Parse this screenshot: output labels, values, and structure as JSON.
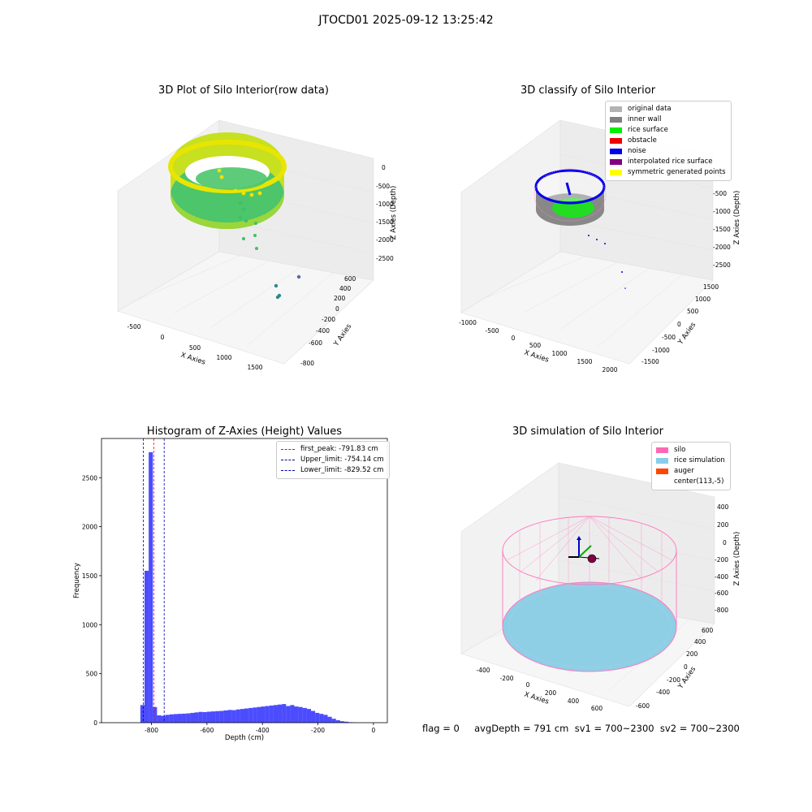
{
  "figure": {
    "title": "JTOCD01 2025-09-12 13:25:42",
    "status_text": "flag = 0     avgDepth = 791 cm  sv1 = 700~2300  sv2 = 700~2300"
  },
  "panels": {
    "raw": {
      "title": "3D Plot of Silo Interior(row data)",
      "xlabel": "X Axies",
      "ylabel": "Y Axies",
      "zlabel": "Z Axies (Depth)",
      "xticks": [
        "-500",
        "0",
        "500",
        "1000",
        "1500"
      ],
      "yticks": [
        "-800",
        "-600",
        "-400",
        "-200",
        "0",
        "200",
        "400",
        "600"
      ],
      "zticks": [
        "0",
        "-500",
        "-1000",
        "-1500",
        "-2000",
        "-2500"
      ]
    },
    "classify": {
      "title": "3D classify of Silo Interior",
      "xlabel": "X Axies",
      "ylabel": "Y Axies",
      "zlabel": "Z Axies (Depth)",
      "xticks": [
        "-1000",
        "-500",
        "0",
        "500",
        "1000",
        "1500",
        "2000"
      ],
      "yticks": [
        "-1500",
        "-1000",
        "-500",
        "0",
        "500",
        "1000",
        "1500"
      ],
      "zticks": [
        "0",
        "-500",
        "-1000",
        "-1500",
        "-2000",
        "-2500"
      ],
      "legend": [
        {
          "label": "original data",
          "color": "#b3b3b3"
        },
        {
          "label": "inner wall",
          "color": "#808080"
        },
        {
          "label": "rice surface",
          "color": "#00ee00"
        },
        {
          "label": "obstacle",
          "color": "#ee0000"
        },
        {
          "label": "noise",
          "color": "#0000ee"
        },
        {
          "label": "interpolated rice surface",
          "color": "#800080"
        },
        {
          "label": "symmetric generated points",
          "color": "#ffff00"
        }
      ]
    },
    "histogram": {
      "title": "Histogram of Z-Axies (Height) Values",
      "xlabel": "Depth (cm)",
      "ylabel": "Frequency",
      "legend": [
        {
          "label": "first_peak: -791.83 cm",
          "color": "#ff0000"
        },
        {
          "label": "Upper_limit: -754.14 cm",
          "color": "#0000aa"
        },
        {
          "label": "Lower_limit: -829.52 cm",
          "color": "#0000aa"
        }
      ]
    },
    "simulation": {
      "title": "3D simulation of Silo Interior",
      "xlabel": "X Axies",
      "ylabel": "Y Axies",
      "zlabel": "Z Axies (Depth)",
      "xticks": [
        "-400",
        "-200",
        "0",
        "200",
        "400",
        "600"
      ],
      "yticks": [
        "-600",
        "-400",
        "-200",
        "0",
        "200",
        "400",
        "600"
      ],
      "zticks": [
        "400",
        "200",
        "0",
        "-200",
        "-400",
        "-600",
        "-800"
      ],
      "legend": [
        {
          "label": "silo",
          "color": "#ff69b4"
        },
        {
          "label": "rice simulation",
          "color": "#87ceeb"
        },
        {
          "label": "auger",
          "color": "#ff4500"
        },
        {
          "label": "center(113,-5)",
          "color": ""
        }
      ]
    }
  },
  "chart_data": {
    "type": "bar",
    "title": "Histogram of Z-Axies (Height) Values",
    "xlabel": "Depth (cm)",
    "ylabel": "Frequency",
    "xlim": [
      -980,
      50
    ],
    "ylim": [
      0,
      2900
    ],
    "xticks": [
      -800,
      -600,
      -400,
      -200,
      0
    ],
    "yticks": [
      0,
      500,
      1000,
      1500,
      2000,
      2500
    ],
    "bin_width": 15,
    "bin_start": -840,
    "values": [
      180,
      1550,
      2760,
      160,
      75,
      70,
      80,
      85,
      88,
      90,
      92,
      95,
      100,
      105,
      110,
      108,
      112,
      115,
      118,
      120,
      125,
      130,
      128,
      135,
      140,
      145,
      150,
      155,
      160,
      165,
      170,
      175,
      180,
      185,
      190,
      170,
      180,
      165,
      160,
      150,
      140,
      120,
      100,
      90,
      80,
      60,
      40,
      25,
      15,
      10,
      5,
      2,
      0,
      0,
      0,
      0
    ],
    "series_color": "#0000ff",
    "lines": [
      {
        "name": "first_peak: -791.83 cm",
        "x": -791.83,
        "color": "#ff0000"
      },
      {
        "name": "Upper_limit: -754.14 cm",
        "x": -754.14,
        "color": "#0000aa"
      },
      {
        "name": "Lower_limit: -829.52 cm",
        "x": -829.52,
        "color": "#0000aa"
      }
    ],
    "legend_position": "top-right"
  }
}
